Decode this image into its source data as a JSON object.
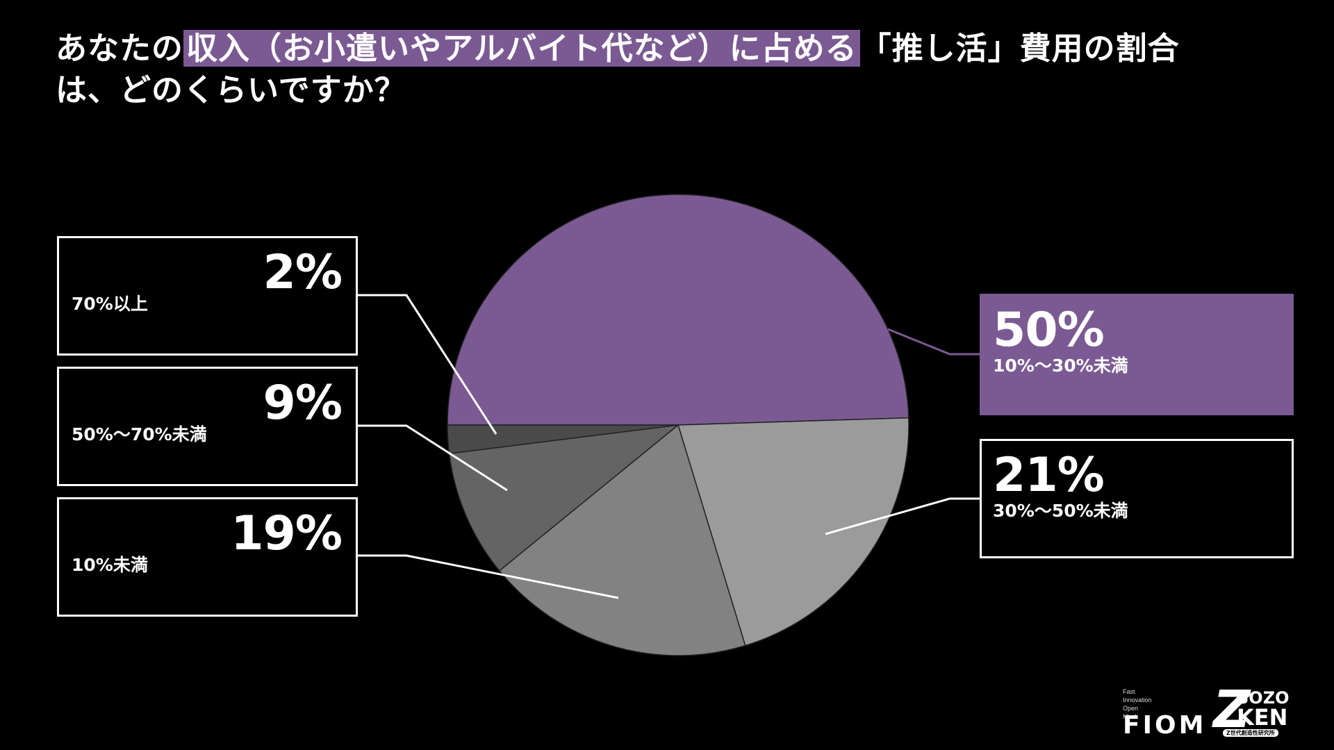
{
  "title": {
    "part1": "あなたの",
    "highlight": "収入（お小遣いやアルバイト代など）に占める",
    "part2": "「推し活」費用の割合は、どのくらいですか？"
  },
  "colors": {
    "accent": "#7b5a93",
    "background": "#000000",
    "text": "#ffffff",
    "slice_10_30": "#7b5a93",
    "slice_30_50": "#9b9b9b",
    "slice_under10": "#828282",
    "slice_50_70": "#646464",
    "slice_70plus": "#4a4a4a"
  },
  "chart_data": {
    "type": "pie",
    "title": "あなたの収入（お小遣いやアルバイト代など）に占める「推し活」費用の割合は、どのくらいですか？",
    "slices": [
      {
        "label": "10%〜30%未満",
        "value": 50,
        "value_label": "50%",
        "color": "#7b5a93"
      },
      {
        "label": "30%〜50%未満",
        "value": 21,
        "value_label": "21%",
        "color": "#9b9b9b"
      },
      {
        "label": "10%未満",
        "value": 19,
        "value_label": "19%",
        "color": "#828282"
      },
      {
        "label": "50%〜70%未満",
        "value": 9,
        "value_label": "9%",
        "color": "#646464"
      },
      {
        "label": "70%以上",
        "value": 2,
        "value_label": "2%",
        "color": "#4a4a4a"
      }
    ],
    "start": "left",
    "direction": "clockwise",
    "legend": "callout-boxes"
  },
  "logos": {
    "fiom_sub": [
      "Fast",
      "Innovation",
      "Open",
      "Mind"
    ],
    "fiom_main": "FIOM",
    "sozo_z": "Z",
    "sozo_line1": "SOZO",
    "sozo_line2": "KEN",
    "sozo_tag": "Z世代創造性研究所"
  }
}
